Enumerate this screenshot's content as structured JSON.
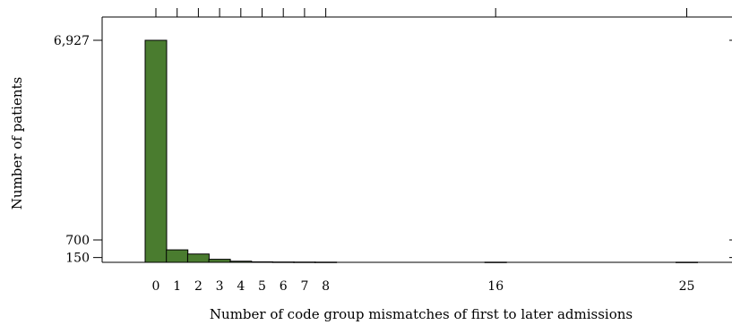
{
  "chart_data": {
    "type": "bar",
    "xlabel": "Number of code group mismatches of first to later admissions",
    "ylabel": "Number of patients",
    "bar_color": "#4a7c2f",
    "bar_edge_color": "#000000",
    "x_tick_labels": [
      "0",
      "1",
      "2",
      "3",
      "4",
      "5",
      "6",
      "7",
      "8",
      "16",
      "25"
    ],
    "y_tick_labels": [
      "6,927",
      "700",
      "150"
    ],
    "y_ticks": [
      6927,
      700,
      150
    ],
    "ylim": [
      0,
      7300
    ],
    "categories": [
      "0",
      "1",
      "2",
      "3",
      "4",
      "5",
      "6",
      "7",
      "8",
      "16",
      "25"
    ],
    "values": [
      6927,
      390,
      260,
      95,
      35,
      15,
      10,
      8,
      6,
      5,
      4
    ]
  }
}
